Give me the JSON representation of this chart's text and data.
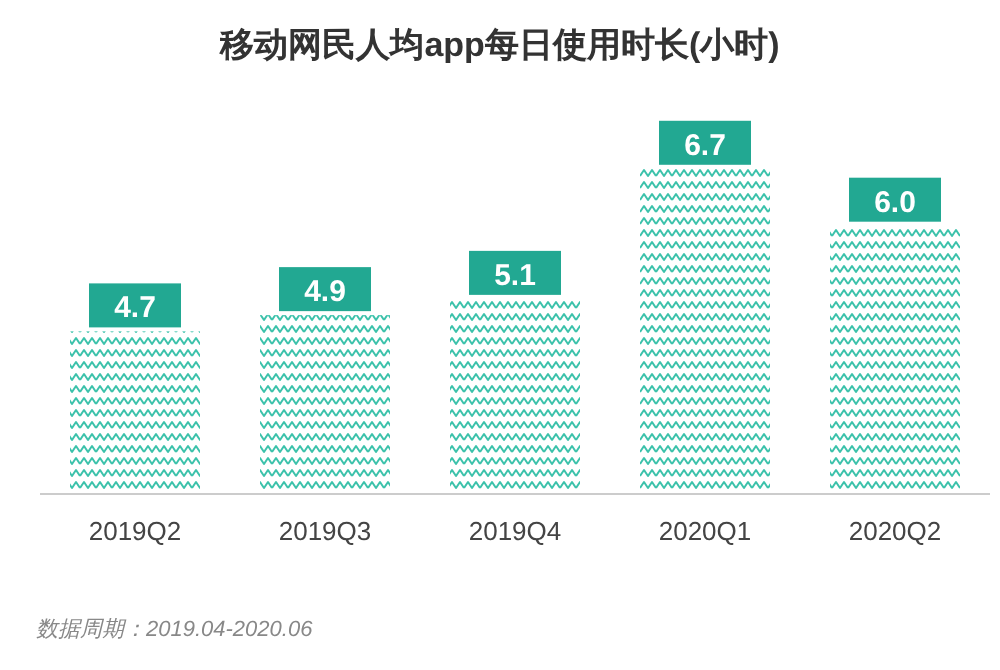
{
  "chart_data": {
    "type": "bar",
    "title": "移动网民人均app每日使用时长(小时)",
    "categories": [
      "2019Q2",
      "2019Q3",
      "2019Q4",
      "2020Q1",
      "2020Q2"
    ],
    "values": [
      4.7,
      4.9,
      5.1,
      6.7,
      6.0
    ],
    "color": "#3cc2ab",
    "ylim": [
      2.7,
      7.3
    ],
    "value_labels": [
      "4.7",
      "4.9",
      "5.1",
      "6.7",
      "6.0"
    ],
    "grid": false,
    "annotations": [
      "数据周期：2019.04-2020.06"
    ]
  }
}
